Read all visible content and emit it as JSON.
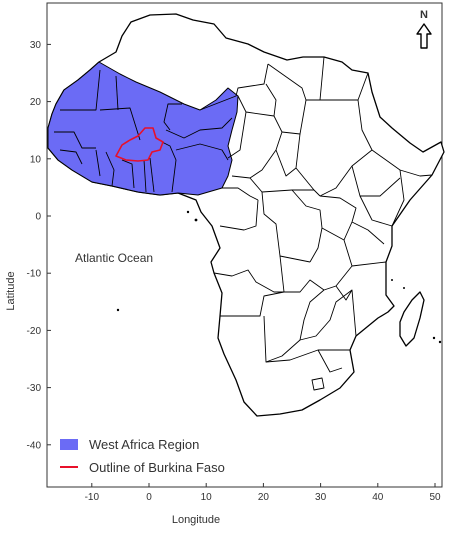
{
  "map": {
    "xlabel": "Longitude",
    "ylabel": "Latitude",
    "x_ticks": [
      -10,
      0,
      10,
      20,
      30,
      40,
      50
    ],
    "y_ticks": [
      30,
      20,
      10,
      0,
      -10,
      -20,
      -30,
      -40
    ],
    "xlim": [
      -18,
      52
    ],
    "ylim": [
      -47,
      37
    ],
    "ocean_label": "Atlantic Ocean",
    "north_label": "N",
    "legend": {
      "entries": [
        {
          "label": "West Africa Region",
          "color": "#6b6bf5"
        },
        {
          "label": "Outline of Burkina Faso",
          "color": "#e8102a"
        }
      ]
    }
  },
  "colors": {
    "west_africa_fill": "#6b6bf5",
    "burkina_outline": "#e8102a",
    "border": "#000000",
    "axis_text": "#333333"
  }
}
